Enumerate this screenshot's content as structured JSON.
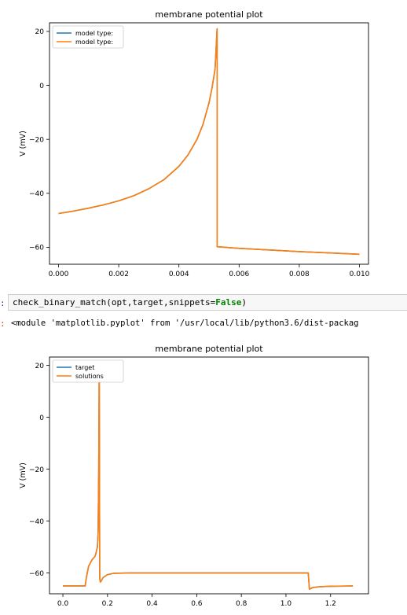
{
  "notebook": {
    "in_prompt": ":",
    "out_prompt": ":",
    "code": {
      "call": "check_binary_match(opt,target,snippets=",
      "keyword": "False",
      "close": ")"
    },
    "output_text": "<module 'matplotlib.pyplot' from '/usr/local/lib/python3.6/dist-packag"
  },
  "colors": {
    "series1": "#1f77b4",
    "series2": "#ff7f0e",
    "axis": "#000000"
  },
  "chart_data": [
    {
      "type": "line",
      "title": "membrane potential plot",
      "xlabel": "",
      "ylabel": "V (mV)",
      "xlim": [
        -0.0003,
        0.0103
      ],
      "ylim": [
        -66.3,
        23.2
      ],
      "xticks": [
        0.0,
        0.002,
        0.004,
        0.006,
        0.008,
        0.01
      ],
      "xticklabels": [
        "0.000",
        "0.002",
        "0.004",
        "0.006",
        "0.008",
        "0.010"
      ],
      "yticks": [
        -60,
        -40,
        -20,
        0,
        20
      ],
      "yticklabels": [
        "−60",
        "−40",
        "−20",
        "0",
        "20"
      ],
      "grid": false,
      "legend_position": "top-left",
      "series": [
        {
          "name": "model type:",
          "color": "#1f77b4",
          "x": [
            0,
            0.0005,
            0.001,
            0.0015,
            0.002,
            0.0025,
            0.003,
            0.0035,
            0.004,
            0.0043,
            0.0046,
            0.0048,
            0.005,
            0.0051,
            0.0052,
            0.00527,
            0.00527,
            0.006,
            0.007,
            0.008,
            0.009,
            0.01
          ],
          "y": [
            -47.5,
            -46.6,
            -45.5,
            -44.3,
            -42.8,
            -40.9,
            -38.3,
            -35.0,
            -30.0,
            -25.8,
            -20.0,
            -14.5,
            -6.5,
            -1.0,
            6.0,
            21.0,
            -59.8,
            -60.4,
            -61.0,
            -61.6,
            -62.1,
            -62.6
          ]
        },
        {
          "name": "model type:",
          "color": "#ff7f0e",
          "x": [
            0,
            0.0005,
            0.001,
            0.0015,
            0.002,
            0.0025,
            0.003,
            0.0035,
            0.004,
            0.0043,
            0.0046,
            0.0048,
            0.005,
            0.0051,
            0.0052,
            0.00527,
            0.00527,
            0.006,
            0.007,
            0.008,
            0.009,
            0.01
          ],
          "y": [
            -47.5,
            -46.6,
            -45.5,
            -44.3,
            -42.8,
            -40.9,
            -38.3,
            -35.0,
            -30.0,
            -25.8,
            -20.0,
            -14.5,
            -6.5,
            -1.0,
            6.0,
            21.0,
            -59.8,
            -60.4,
            -61.0,
            -61.6,
            -62.1,
            -62.6
          ]
        }
      ]
    },
    {
      "type": "line",
      "title": "membrane potential plot",
      "xlabel": "",
      "ylabel": "V (mV)",
      "xlim": [
        -0.06,
        1.37
      ],
      "ylim": [
        -68.0,
        23.2
      ],
      "xticks": [
        0.0,
        0.2,
        0.4,
        0.6,
        0.8,
        1.0,
        1.2
      ],
      "xticklabels": [
        "0.0",
        "0.2",
        "0.4",
        "0.6",
        "0.8",
        "1.0",
        "1.2"
      ],
      "yticks": [
        -60,
        -40,
        -20,
        0,
        20
      ],
      "yticklabels": [
        "−60",
        "−40",
        "−20",
        "0",
        "20"
      ],
      "grid": false,
      "legend_position": "top-left",
      "series": [
        {
          "name": "target",
          "color": "#1f77b4",
          "x": [
            0,
            0.1,
            0.105,
            0.115,
            0.13,
            0.145,
            0.155,
            0.158,
            0.161,
            0.163,
            0.165,
            0.168,
            0.172,
            0.18,
            0.2,
            0.23,
            0.3,
            0.5,
            0.7,
            0.9,
            1.1,
            1.1,
            1.105,
            1.12,
            1.15,
            1.2,
            1.3
          ],
          "y": [
            -65.0,
            -65.0,
            -62.0,
            -57.5,
            -55.0,
            -53.5,
            -50.0,
            -44.0,
            -20.0,
            21.0,
            -62.0,
            -63.5,
            -63.0,
            -61.8,
            -60.6,
            -60.1,
            -60.0,
            -60.0,
            -60.0,
            -60.0,
            -60.0,
            -60.0,
            -66.2,
            -65.6,
            -65.3,
            -65.1,
            -65.0
          ]
        },
        {
          "name": "solutions",
          "color": "#ff7f0e",
          "x": [
            0,
            0.1,
            0.105,
            0.115,
            0.13,
            0.145,
            0.155,
            0.158,
            0.161,
            0.163,
            0.165,
            0.168,
            0.172,
            0.18,
            0.2,
            0.23,
            0.3,
            0.5,
            0.7,
            0.9,
            1.1,
            1.1,
            1.105,
            1.12,
            1.15,
            1.2,
            1.3
          ],
          "y": [
            -65.0,
            -65.0,
            -62.0,
            -57.5,
            -55.0,
            -53.5,
            -50.0,
            -44.0,
            -20.0,
            21.0,
            -62.0,
            -63.5,
            -63.0,
            -61.8,
            -60.6,
            -60.1,
            -60.0,
            -60.0,
            -60.0,
            -60.0,
            -60.0,
            -60.0,
            -66.2,
            -65.6,
            -65.3,
            -65.1,
            -65.0
          ]
        }
      ]
    }
  ]
}
